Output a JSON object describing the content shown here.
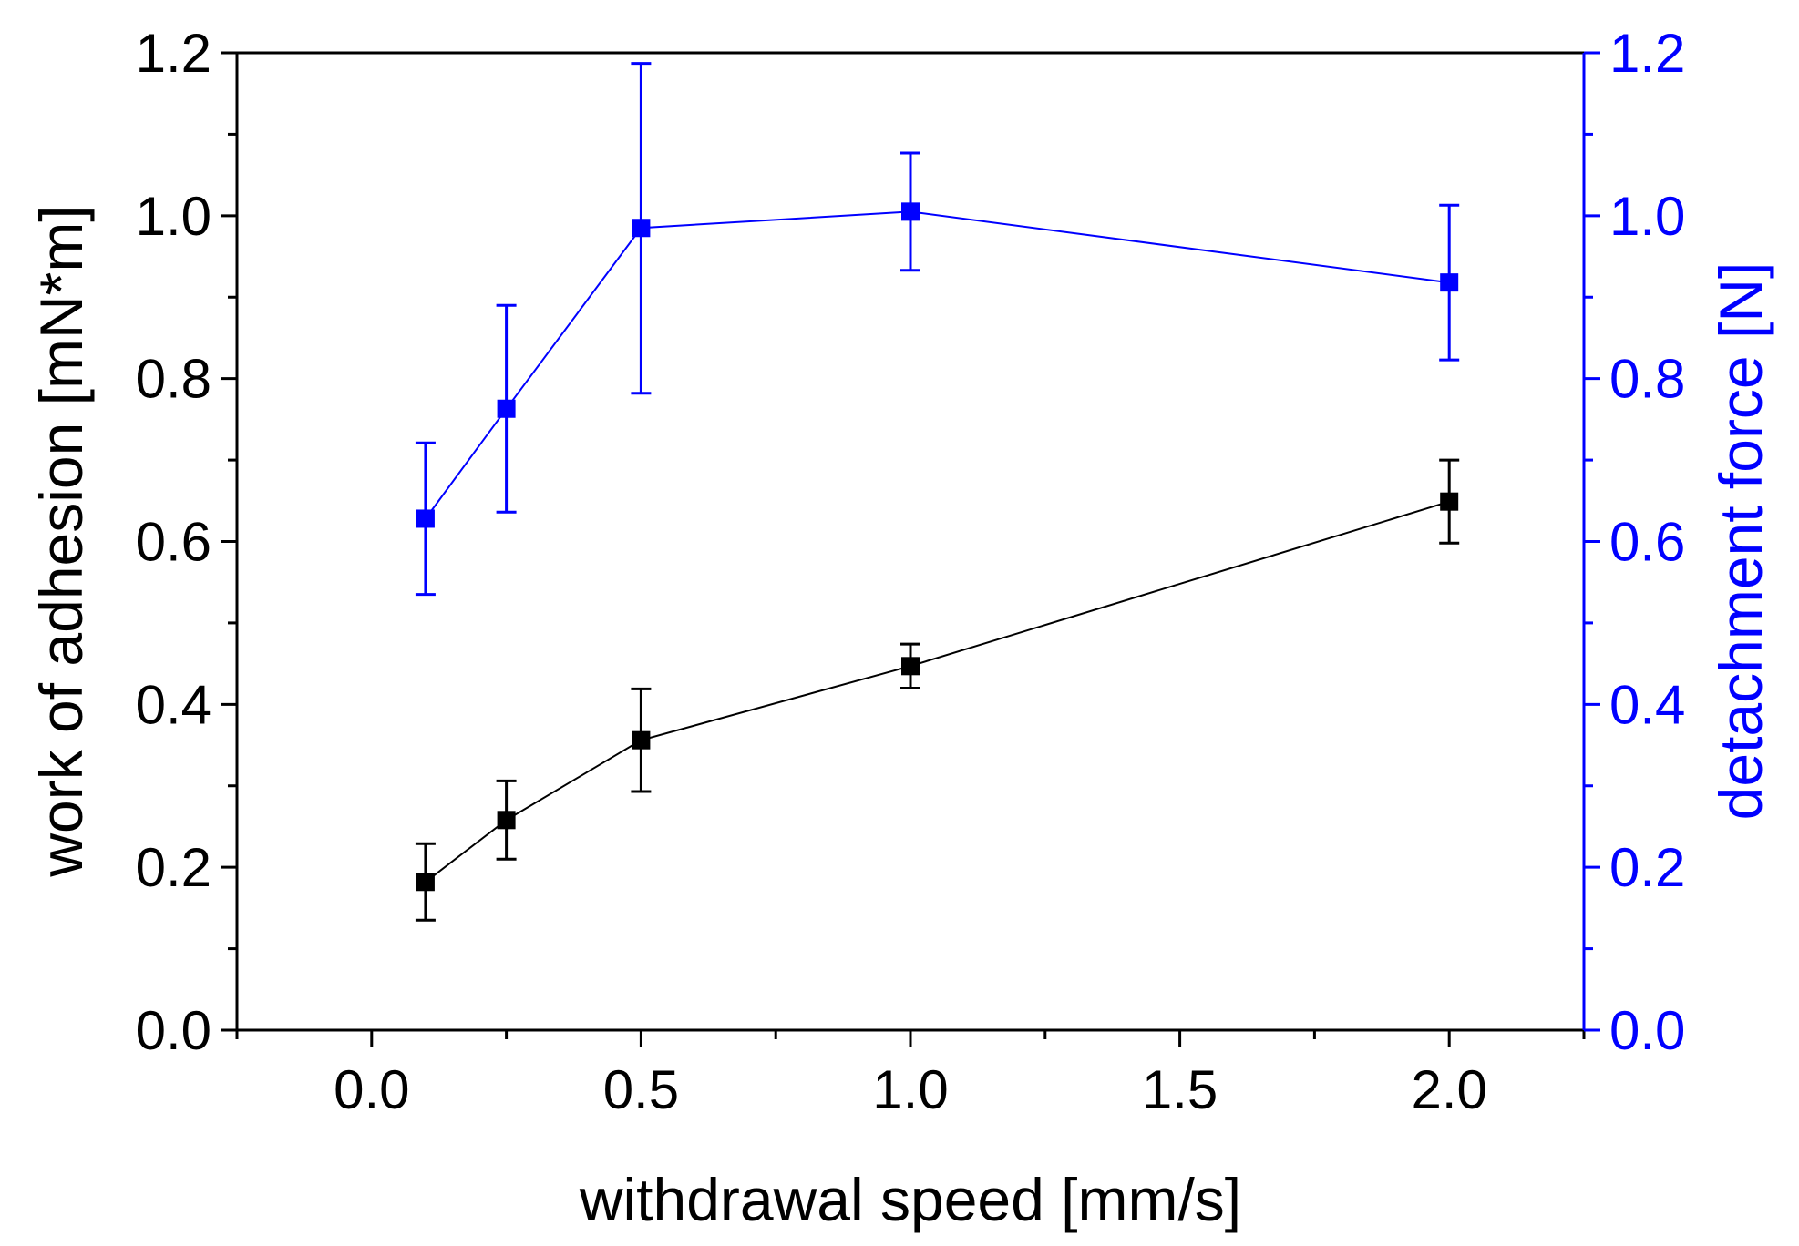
{
  "chart_data": {
    "type": "line",
    "title": "",
    "xlabel": "withdrawal speed [mm/s]",
    "ylabel": "work of adhesion [mN*m]",
    "y2label": "detachment force [N]",
    "xlim": [
      -0.25,
      2.25
    ],
    "ylim": [
      0.0,
      1.2
    ],
    "y2lim": [
      0.0,
      1.2
    ],
    "x_ticks": [
      "0.0",
      "0.5",
      "1.0",
      "1.5",
      "2.0"
    ],
    "y_ticks": [
      "0.0",
      "0.2",
      "0.4",
      "0.6",
      "0.8",
      "1.0",
      "1.2"
    ],
    "y2_ticks": [
      "0.0",
      "0.2",
      "0.4",
      "0.6",
      "0.8",
      "1.0",
      "1.2"
    ],
    "grid": false,
    "colors": {
      "axis": "#000000",
      "left_series": "#000000",
      "right_series": "#0000ff",
      "right_axis": "#0000ff"
    },
    "series": [
      {
        "name": "work of adhesion",
        "axis": "left",
        "marker": "square",
        "x": [
          0.1,
          0.25,
          0.5,
          1.0,
          2.0
        ],
        "y": [
          0.182,
          0.258,
          0.356,
          0.447,
          0.649
        ],
        "err_lower": [
          0.047,
          0.048,
          0.063,
          0.027,
          0.051
        ],
        "err_upper": [
          0.047,
          0.048,
          0.063,
          0.027,
          0.051
        ]
      },
      {
        "name": "detachment force",
        "axis": "right",
        "marker": "square",
        "x": [
          0.1,
          0.25,
          0.5,
          1.0,
          2.0
        ],
        "y": [
          0.628,
          0.763,
          0.985,
          1.005,
          0.918
        ],
        "err_lower": [
          0.093,
          0.127,
          0.203,
          0.072,
          0.095
        ],
        "err_upper": [
          0.093,
          0.127,
          0.202,
          0.072,
          0.095
        ]
      }
    ]
  }
}
